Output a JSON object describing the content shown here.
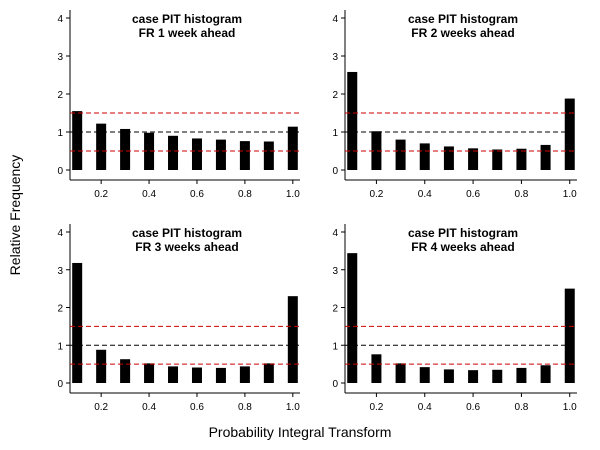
{
  "figure": {
    "ylabel": "Relative Frequency",
    "xlabel": "Probability Integral Transform"
  },
  "colors": {
    "bar": "#000000",
    "reference_line": "#000000",
    "bound_line": "#cc0000"
  },
  "chart_data": [
    {
      "type": "bar",
      "title": "case PIT histogram",
      "subtitle": "FR 1 week ahead",
      "x": [
        0.1,
        0.2,
        0.3,
        0.4,
        0.5,
        0.6,
        0.7,
        0.8,
        0.9,
        1.0
      ],
      "values": [
        1.55,
        1.22,
        1.08,
        0.98,
        0.9,
        0.83,
        0.8,
        0.76,
        0.75,
        1.14
      ],
      "xticks": [
        "0.2",
        "0.4",
        "0.6",
        "0.8",
        "1.0"
      ],
      "yticks": [
        "0",
        "1",
        "2",
        "3",
        "4"
      ],
      "ylim": [
        0,
        4
      ],
      "reference_lines": [
        1.0
      ],
      "bound_lines": [
        0.5,
        1.5
      ],
      "grid": false
    },
    {
      "type": "bar",
      "title": "case PIT histogram",
      "subtitle": "FR 2 weeks ahead",
      "x": [
        0.1,
        0.2,
        0.3,
        0.4,
        0.5,
        0.6,
        0.7,
        0.8,
        0.9,
        1.0
      ],
      "values": [
        2.58,
        1.02,
        0.8,
        0.7,
        0.62,
        0.57,
        0.54,
        0.56,
        0.66,
        1.88
      ],
      "xticks": [
        "0.2",
        "0.4",
        "0.6",
        "0.8",
        "1.0"
      ],
      "yticks": [
        "0",
        "1",
        "2",
        "3",
        "4"
      ],
      "ylim": [
        0,
        4
      ],
      "reference_lines": [
        1.0
      ],
      "bound_lines": [
        0.5,
        1.5
      ],
      "grid": false
    },
    {
      "type": "bar",
      "title": "case PIT histogram",
      "subtitle": "FR 3 weeks ahead",
      "x": [
        0.1,
        0.2,
        0.3,
        0.4,
        0.5,
        0.6,
        0.7,
        0.8,
        0.9,
        1.0
      ],
      "values": [
        3.18,
        0.88,
        0.63,
        0.52,
        0.44,
        0.41,
        0.4,
        0.44,
        0.52,
        2.3
      ],
      "xticks": [
        "0.2",
        "0.4",
        "0.6",
        "0.8",
        "1.0"
      ],
      "yticks": [
        "0",
        "1",
        "2",
        "3",
        "4"
      ],
      "ylim": [
        0,
        4
      ],
      "reference_lines": [
        1.0
      ],
      "bound_lines": [
        0.5,
        1.5
      ],
      "grid": false
    },
    {
      "type": "bar",
      "title": "case PIT histogram",
      "subtitle": "FR 4 weeks ahead",
      "x": [
        0.1,
        0.2,
        0.3,
        0.4,
        0.5,
        0.6,
        0.7,
        0.8,
        0.9,
        1.0
      ],
      "values": [
        3.44,
        0.76,
        0.52,
        0.42,
        0.36,
        0.34,
        0.35,
        0.4,
        0.47,
        2.5
      ],
      "xticks": [
        "0.2",
        "0.4",
        "0.6",
        "0.8",
        "1.0"
      ],
      "yticks": [
        "0",
        "1",
        "2",
        "3",
        "4"
      ],
      "ylim": [
        0,
        4
      ],
      "reference_lines": [
        1.0
      ],
      "bound_lines": [
        0.5,
        1.5
      ],
      "grid": false
    }
  ]
}
